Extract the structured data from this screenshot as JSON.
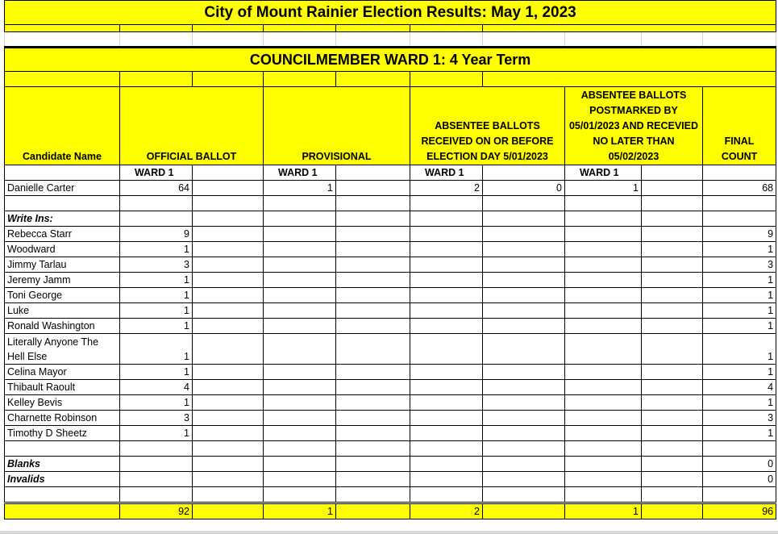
{
  "title": "City of Mount Rainier Election Results:  May 1, 2023",
  "race_title": "COUNCILMEMBER WARD 1:  4 Year Term",
  "headers": {
    "candidate": "Candidate Name",
    "official": "OFFICIAL BALLOT",
    "provisional": "PROVISIONAL",
    "absentee_before": "ABSENTEE BALLOTS RECEIVED ON OR BEFORE ELECTION DAY 5/01/2023",
    "absentee_after": "ABSENTEE BALLOTS POSTMARKED BY 05/01/2023 AND RECEVIED NO LATER THAN 05/02/2023",
    "final": "FINAL COUNT",
    "ward": "WARD 1"
  },
  "main_candidate": {
    "name": "Danielle Carter",
    "official": "64",
    "provisional": "1",
    "absentee_before": "2",
    "absentee_before_b": "0",
    "absentee_after": "1",
    "final": "68"
  },
  "write_ins_label": "Write Ins:",
  "write_ins": [
    {
      "name": "Rebecca Starr",
      "official": "9",
      "final": "9"
    },
    {
      "name": "Woodward",
      "official": "1",
      "final": "1"
    },
    {
      "name": "Jimmy Tarlau",
      "official": "3",
      "final": "3"
    },
    {
      "name": "Jeremy Jamm",
      "official": "1",
      "final": "1"
    },
    {
      "name": "Toni George",
      "official": "1",
      "final": "1"
    },
    {
      "name": "Luke",
      "official": "1",
      "final": "1"
    },
    {
      "name": "Ronald Washington",
      "official": "1",
      "final": "1"
    },
    {
      "name": "Literally Anyone The Hell Else",
      "official": "1",
      "final": "1"
    },
    {
      "name": "Celina Mayor",
      "official": "1",
      "final": "1"
    },
    {
      "name": "Thibault Raoult",
      "official": "4",
      "final": "4"
    },
    {
      "name": "Kelley Bevis",
      "official": "1",
      "final": "1"
    },
    {
      "name": "Charnette Robinson",
      "official": "3",
      "final": "3"
    },
    {
      "name": "Timothy D Sheetz",
      "official": "1",
      "final": "1"
    }
  ],
  "blanks": {
    "label": "Blanks",
    "final": "0"
  },
  "invalids": {
    "label": "Invalids",
    "final": "0"
  },
  "totals": {
    "official": "92",
    "provisional": "1",
    "absentee_before": "2",
    "absentee_after": "1",
    "final": "96"
  },
  "colors": {
    "highlight": "#ffff00"
  }
}
